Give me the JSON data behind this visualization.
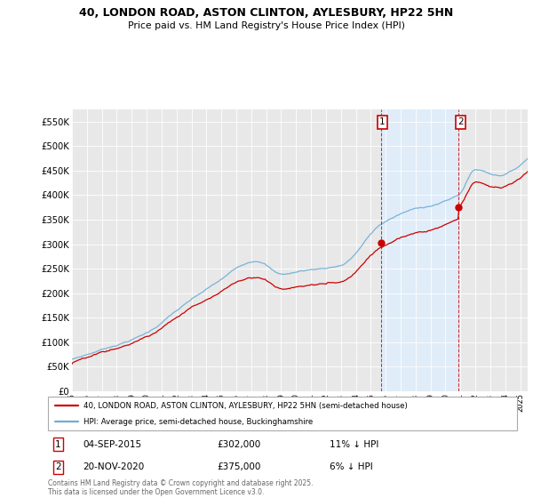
{
  "title": "40, LONDON ROAD, ASTON CLINTON, AYLESBURY, HP22 5HN",
  "subtitle": "Price paid vs. HM Land Registry's House Price Index (HPI)",
  "ytick_values": [
    0,
    50000,
    100000,
    150000,
    200000,
    250000,
    300000,
    350000,
    400000,
    450000,
    500000,
    550000
  ],
  "ylabel_ticks": [
    "£0",
    "£50K",
    "£100K",
    "£150K",
    "£200K",
    "£250K",
    "£300K",
    "£350K",
    "£400K",
    "£450K",
    "£500K",
    "£550K"
  ],
  "ylim": [
    0,
    575000
  ],
  "xlim_start": 1995,
  "xlim_end": 2025.5,
  "legend_line1": "40, LONDON ROAD, ASTON CLINTON, AYLESBURY, HP22 5HN (semi-detached house)",
  "legend_line2": "HPI: Average price, semi-detached house, Buckinghamshire",
  "ann1_date": "04-SEP-2015",
  "ann1_price": "£302,000",
  "ann1_hpi": "11% ↓ HPI",
  "ann2_date": "20-NOV-2020",
  "ann2_price": "£375,000",
  "ann2_hpi": "6% ↓ HPI",
  "footnote": "Contains HM Land Registry data © Crown copyright and database right 2025.\nThis data is licensed under the Open Government Licence v3.0.",
  "color_property": "#cc0000",
  "color_hpi": "#6aaed6",
  "color_shade": "#ddeeff",
  "bg_color": "#e8e8e8",
  "purchase1_year": 2015.67,
  "purchase2_year": 2020.89,
  "purchase1_price": 302000,
  "purchase2_price": 375000,
  "hpi_at_purchase1": 339000,
  "hpi_at_purchase2": 399000
}
